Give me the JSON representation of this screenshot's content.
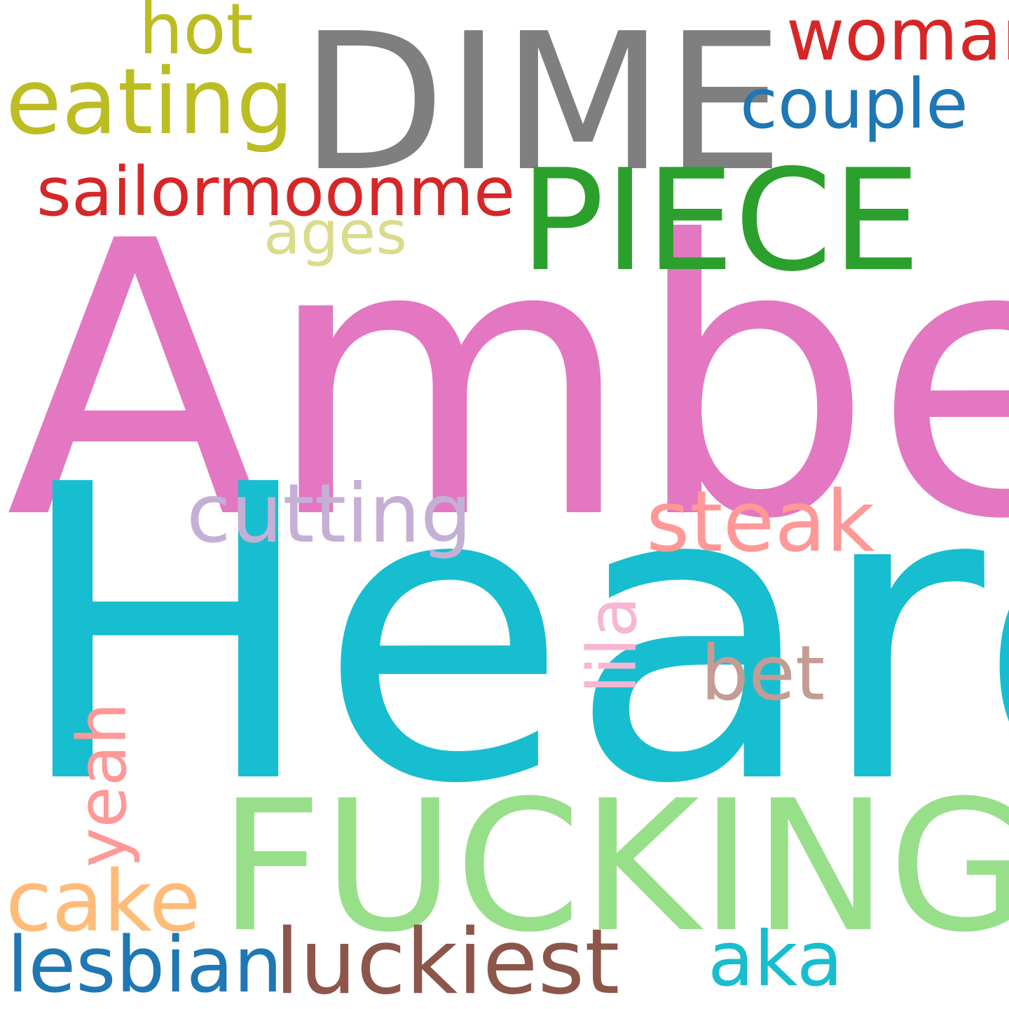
{
  "background": "#ffffff",
  "words": {
    "amber": {
      "text": "Amber",
      "color": "#e377c2"
    },
    "heard": {
      "text": "Heard",
      "color": "#17becf"
    },
    "dime": {
      "text": "DIME",
      "color": "#7f7f7f"
    },
    "piece": {
      "text": "PIECE",
      "color": "#2ca02c"
    },
    "fucking": {
      "text": "FUCKING",
      "color": "#98df8a"
    },
    "eating": {
      "text": "eating",
      "color": "#bcbd22"
    },
    "woman": {
      "text": "woman",
      "color": "#d62728"
    },
    "hot": {
      "text": "hot",
      "color": "#bcbd22"
    },
    "couple": {
      "text": "couple",
      "color": "#1f77b4"
    },
    "sailor": {
      "text": "sailormoonme",
      "color": "#d62728"
    },
    "ages": {
      "text": "ages",
      "color": "#dbdb8d"
    },
    "cutting": {
      "text": "cutting",
      "color": "#c5b0d5"
    },
    "steak": {
      "text": "steak",
      "color": "#ff9896"
    },
    "lila": {
      "text": "lila",
      "color": "#f7b6d2"
    },
    "bet": {
      "text": "bet",
      "color": "#c49c94"
    },
    "yeah": {
      "text": "yeah",
      "color": "#ff9896"
    },
    "cake": {
      "text": "cake",
      "color": "#ffbb78"
    },
    "lesbian": {
      "text": "lesbian",
      "color": "#1f77b4"
    },
    "luckiest": {
      "text": "luckiest",
      "color": "#8c564b"
    },
    "aka": {
      "text": "aka",
      "color": "#17becf"
    }
  }
}
